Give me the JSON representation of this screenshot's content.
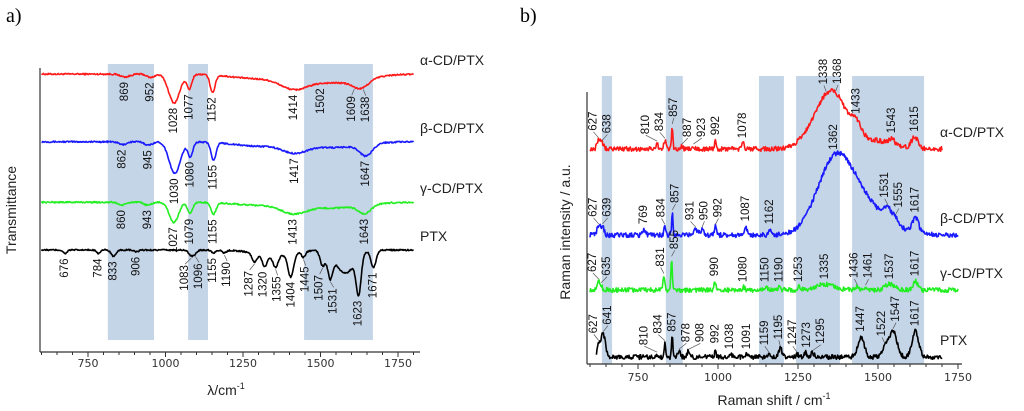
{
  "chart_data": [
    {
      "type": "line",
      "panel_label": "a)",
      "title": "",
      "xlabel": "λ/cm",
      "xlabel_sup": "-1",
      "ylabel": "Transmittance",
      "xlim": [
        600,
        1800
      ],
      "xticks": [
        "750",
        "1000",
        "1250",
        "1500",
        "1750"
      ],
      "xtick_values": [
        750,
        1000,
        1250,
        1500,
        1750
      ],
      "grid": false,
      "band_color": "#c5d5e8",
      "bands": [
        [
          814,
          963
        ],
        [
          1073,
          1137
        ],
        [
          1447,
          1669
        ]
      ],
      "mode": "transmittance",
      "series": [
        {
          "name": "α-CD/PTX",
          "color": "#ff1a1a",
          "baseline": 96.5,
          "range": [
            600,
            1800
          ],
          "features": [
            [
              1028,
              10,
              18
            ],
            [
              1077,
              5,
              8
            ],
            [
              1152,
              6,
              8
            ],
            [
              870,
              1,
              15
            ],
            [
              952,
              1.2,
              12
            ],
            [
              1414,
              4,
              45
            ],
            [
              1550,
              3,
              90
            ],
            [
              1630,
              3,
              25
            ],
            [
              1290,
              1.5,
              80
            ]
          ],
          "labels": [
            "869",
            "952",
            "1028",
            "1077",
            "1152",
            "1414",
            "1502",
            "1609",
            "1638"
          ]
        },
        {
          "name": "β-CD/PTX",
          "color": "#1a1aff",
          "baseline": 73,
          "range": [
            600,
            1800
          ],
          "features": [
            [
              1030,
              11,
              18
            ],
            [
              1080,
              5,
              8
            ],
            [
              1155,
              6,
              8
            ],
            [
              862,
              1,
              12
            ],
            [
              945,
              1.2,
              12
            ],
            [
              1417,
              3,
              40
            ],
            [
              1550,
              2,
              80
            ],
            [
              1647,
              4,
              20
            ],
            [
              1300,
              1.5,
              80
            ]
          ],
          "labels": [
            "862",
            "945",
            "1030",
            "1080",
            "1155",
            "1417",
            "1647"
          ]
        },
        {
          "name": "γ-CD/PTX",
          "color": "#22ee22",
          "baseline": 52,
          "range": [
            600,
            1800
          ],
          "features": [
            [
              1027,
              7,
              15
            ],
            [
              1079,
              4,
              8
            ],
            [
              1155,
              4,
              8
            ],
            [
              860,
              1,
              12
            ],
            [
              943,
              1,
              12
            ],
            [
              1413,
              3,
              40
            ],
            [
              1540,
              2,
              90
            ],
            [
              1643,
              3,
              20
            ],
            [
              1300,
              1,
              80
            ]
          ],
          "labels": [
            "860",
            "943",
            "1027",
            "1079",
            "1155",
            "1413",
            "1643"
          ]
        },
        {
          "name": "PTX",
          "color": "#000000",
          "baseline": 35.4,
          "range": [
            600,
            1800
          ],
          "features": [
            [
              676,
              1.2,
              6
            ],
            [
              784,
              1.2,
              5
            ],
            [
              833,
              2.2,
              8
            ],
            [
              906,
              0.6,
              8
            ],
            [
              1083,
              2,
              8
            ],
            [
              1096,
              1,
              6
            ],
            [
              1155,
              1,
              6
            ],
            [
              1190,
              1,
              6
            ],
            [
              1287,
              3,
              8
            ],
            [
              1320,
              4,
              8
            ],
            [
              1355,
              4,
              8
            ],
            [
              1404,
              8,
              9
            ],
            [
              1445,
              2,
              6
            ],
            [
              1507,
              5,
              8
            ],
            [
              1531,
              8,
              8
            ],
            [
              1580,
              8,
              30
            ],
            [
              1623,
              13,
              8
            ],
            [
              1671,
              6,
              8
            ],
            [
              1350,
              2,
              60
            ]
          ],
          "labels": [
            "676",
            "784",
            "833",
            "906",
            "1083",
            "1096",
            "1155",
            "1190",
            "1287",
            "1320",
            "1355",
            "1404",
            "1445",
            "1507",
            "1531",
            "1623",
            "1671"
          ]
        }
      ]
    },
    {
      "type": "line",
      "panel_label": "b)",
      "title": "",
      "xlabel": "Raman shift / cm",
      "xlabel_sup": "-1",
      "ylabel": "Raman intensity / a.u.",
      "xlim": [
        600,
        1750
      ],
      "xticks": [
        "750",
        "1000",
        "1250",
        "1500",
        "1750"
      ],
      "xtick_values": [
        750,
        1000,
        1250,
        1500,
        1750
      ],
      "grid": false,
      "band_color": "#c5d5e8",
      "bands": [
        [
          637,
          669
        ],
        [
          837,
          890
        ],
        [
          1128,
          1206
        ],
        [
          1244,
          1381
        ],
        [
          1419,
          1644
        ]
      ],
      "mode": "raman",
      "series": [
        {
          "name": "α-CD/PTX",
          "color": "#ff1a1a",
          "baseline": 74.4,
          "range": [
            600,
            1700
          ],
          "features": [
            [
              627,
              3,
              5
            ],
            [
              638,
              2,
              5
            ],
            [
              810,
              2,
              3
            ],
            [
              834,
              3,
              3
            ],
            [
              857,
              8,
              2
            ],
            [
              887,
              1,
              3
            ],
            [
              923,
              1,
              3
            ],
            [
              992,
              3,
              3
            ],
            [
              1078,
              2,
              4
            ],
            [
              1338,
              13,
              50
            ],
            [
              1368,
              8,
              40
            ],
            [
              1480,
              3,
              60
            ],
            [
              1433,
              4,
              15
            ],
            [
              1543,
              2,
              8
            ],
            [
              1615,
              4,
              10
            ]
          ],
          "labels": [
            "627",
            "638",
            "810",
            "834",
            "857",
            "887",
            "923",
            "992",
            "1078",
            "1338",
            "1368",
            "1433",
            "1543",
            "1615"
          ]
        },
        {
          "name": "β-CD/PTX",
          "color": "#1a1aff",
          "baseline": 44.6,
          "range": [
            600,
            1750
          ],
          "features": [
            [
              627,
              3,
              5
            ],
            [
              639,
              3,
              5
            ],
            [
              769,
              2,
              5
            ],
            [
              834,
              3,
              3
            ],
            [
              857,
              8,
              2
            ],
            [
              931,
              2,
              5
            ],
            [
              950,
              2,
              5
            ],
            [
              992,
              3,
              3
            ],
            [
              1087,
              3,
              4
            ],
            [
              1162,
              2,
              4
            ],
            [
              1362,
              23,
              55
            ],
            [
              1430,
              8,
              60
            ],
            [
              1500,
              4,
              70
            ],
            [
              1531,
              4,
              12
            ],
            [
              1555,
              2,
              8
            ],
            [
              1617,
              5,
              10
            ]
          ],
          "labels": [
            "627",
            "639",
            "769",
            "834",
            "857",
            "931",
            "950",
            "992",
            "1087",
            "1162",
            "1362",
            "1531",
            "1555",
            "1617"
          ]
        },
        {
          "name": "γ-CD/PTX",
          "color": "#22ee22",
          "baseline": 25.6,
          "range": [
            600,
            1750
          ],
          "features": [
            [
              627,
              3,
              5
            ],
            [
              635,
              1,
              4
            ],
            [
              831,
              5,
              3
            ],
            [
              855,
              11,
              2
            ],
            [
              990,
              3,
              3
            ],
            [
              1080,
              1,
              4
            ],
            [
              1150,
              1,
              4
            ],
            [
              1190,
              1,
              4
            ],
            [
              1253,
              1,
              4
            ],
            [
              1335,
              2,
              30
            ],
            [
              1436,
              1,
              6
            ],
            [
              1461,
              1,
              6
            ],
            [
              1537,
              2,
              15
            ],
            [
              1617,
              3,
              8
            ]
          ],
          "labels": [
            "627",
            "635",
            "831",
            "855",
            "990",
            "1080",
            "1150",
            "1190",
            "1253",
            "1335",
            "1436",
            "1461",
            "1537",
            "1617"
          ]
        },
        {
          "name": "PTX",
          "color": "#000000",
          "baseline": 2.4,
          "range": [
            620,
            1700
          ],
          "features": [
            [
              627,
              4,
              5
            ],
            [
              641,
              8,
              7
            ],
            [
              810,
              1,
              3
            ],
            [
              834,
              5,
              2
            ],
            [
              857,
              7,
              2
            ],
            [
              878,
              2,
              4
            ],
            [
              908,
              2,
              5
            ],
            [
              992,
              3,
              2
            ],
            [
              1038,
              1,
              5
            ],
            [
              1091,
              1,
              5
            ],
            [
              1159,
              1,
              5
            ],
            [
              1195,
              3,
              5
            ],
            [
              1247,
              1,
              4
            ],
            [
              1273,
              1.5,
              5
            ],
            [
              1295,
              1.5,
              5
            ],
            [
              1447,
              7,
              10
            ],
            [
              1522,
              3,
              10
            ],
            [
              1547,
              9,
              12
            ],
            [
              1617,
              9,
              10
            ]
          ],
          "labels": [
            "627",
            "641",
            "810",
            "834",
            "857",
            "878",
            "908",
            "992",
            "1038",
            "1091",
            "1159",
            "1195",
            "1247",
            "1273",
            "1295",
            "1447",
            "1522",
            "1547",
            "1617"
          ]
        }
      ]
    }
  ]
}
